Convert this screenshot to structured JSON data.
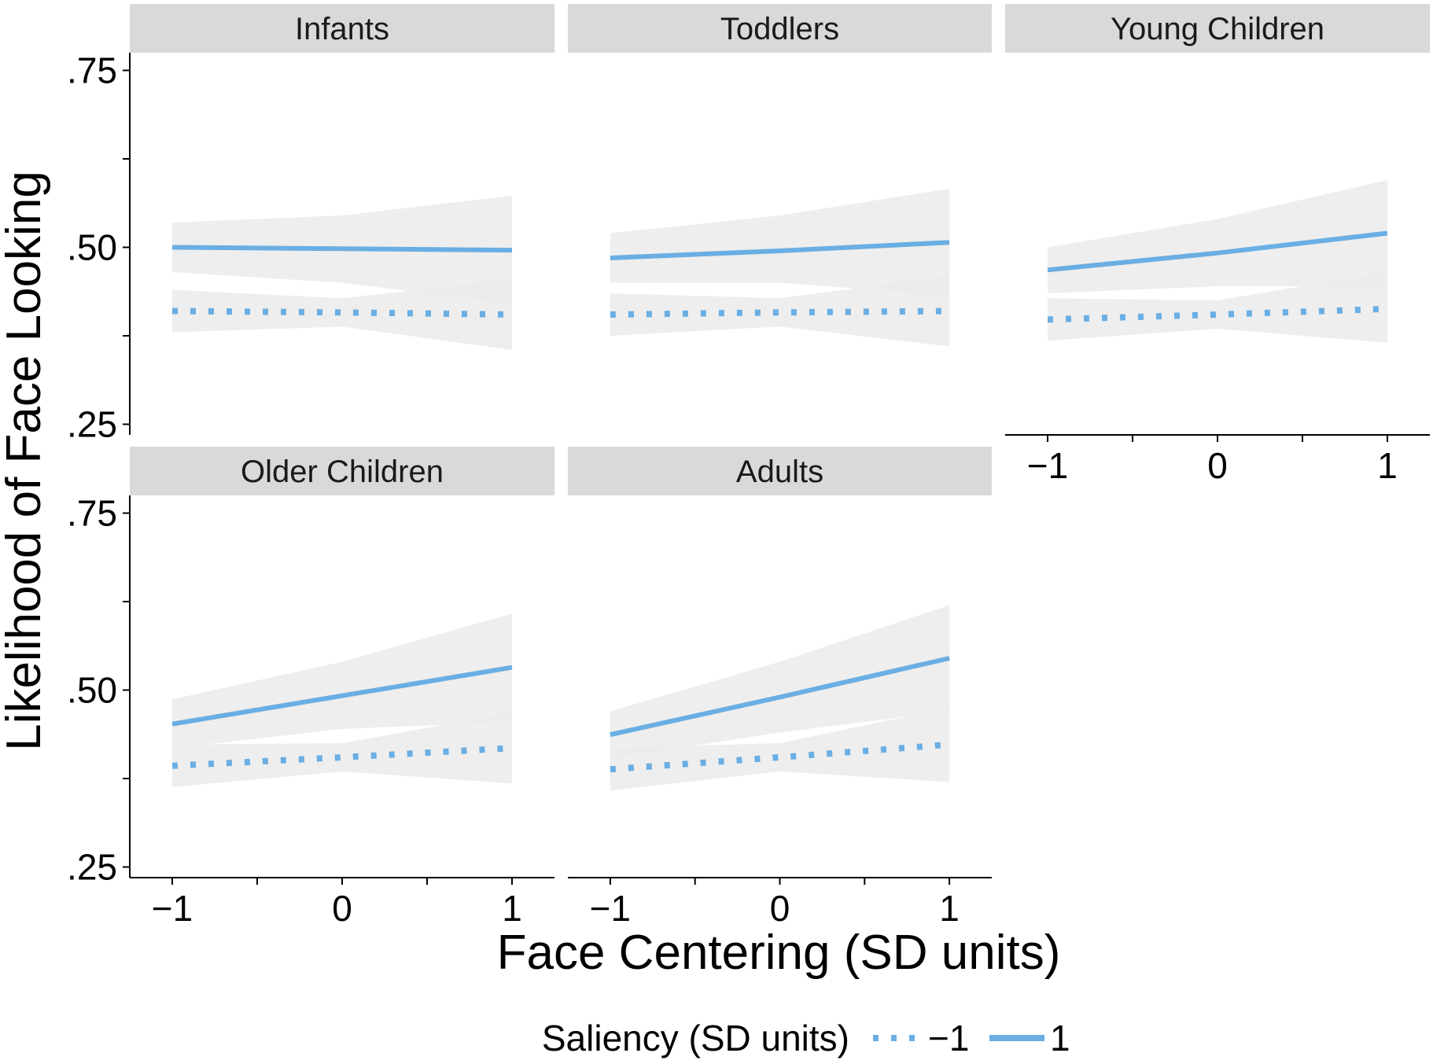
{
  "chart_data": {
    "type": "line",
    "title": "",
    "xlabel": "Face Centering (SD units)",
    "ylabel": "Likelihood of Face Looking",
    "x_ticks": [
      -1,
      0,
      1
    ],
    "x_tick_labels": [
      "−1",
      "0",
      "1"
    ],
    "xlim": [
      -1.25,
      1.25
    ],
    "y_ticks": [
      0.25,
      0.5,
      0.75
    ],
    "y_tick_labels": [
      ".25",
      ".50",
      ".75"
    ],
    "ylim": [
      0.235,
      0.775
    ],
    "grid": false,
    "legend": {
      "position": "bottom",
      "title": "Saliency (SD units)",
      "entries": [
        "−1",
        "1"
      ]
    },
    "colors": {
      "line": "#6aaee3",
      "band": "#ebebeb",
      "band_overlap": "#d6d6d6",
      "strip": "#d9d9d9"
    },
    "panels": [
      {
        "label": "Infants",
        "series": [
          {
            "saliency": "−1",
            "x": [
              -1,
              0,
              1
            ],
            "y": [
              0.41,
              0.408,
              0.405
            ],
            "lower": [
              0.38,
              0.388,
              0.355
            ],
            "upper": [
              0.44,
              0.428,
              0.455
            ]
          },
          {
            "saliency": "1",
            "x": [
              -1,
              0,
              1
            ],
            "y": [
              0.5,
              0.498,
              0.496
            ],
            "lower": [
              0.465,
              0.45,
              0.42
            ],
            "upper": [
              0.535,
              0.545,
              0.573
            ]
          }
        ]
      },
      {
        "label": "Toddlers",
        "series": [
          {
            "saliency": "−1",
            "x": [
              -1,
              0,
              1
            ],
            "y": [
              0.405,
              0.408,
              0.41
            ],
            "lower": [
              0.375,
              0.388,
              0.36
            ],
            "upper": [
              0.435,
              0.428,
              0.46
            ]
          },
          {
            "saliency": "1",
            "x": [
              -1,
              0,
              1
            ],
            "y": [
              0.485,
              0.495,
              0.507
            ],
            "lower": [
              0.45,
              0.45,
              0.432
            ],
            "upper": [
              0.52,
              0.545,
              0.583
            ]
          }
        ]
      },
      {
        "label": "Young Children",
        "series": [
          {
            "saliency": "−1",
            "x": [
              -1,
              0,
              1
            ],
            "y": [
              0.398,
              0.405,
              0.413
            ],
            "lower": [
              0.368,
              0.385,
              0.365
            ],
            "upper": [
              0.428,
              0.425,
              0.465
            ]
          },
          {
            "saliency": "1",
            "x": [
              -1,
              0,
              1
            ],
            "y": [
              0.468,
              0.492,
              0.52
            ],
            "lower": [
              0.435,
              0.445,
              0.445
            ],
            "upper": [
              0.5,
              0.54,
              0.595
            ]
          }
        ]
      },
      {
        "label": "Older Children",
        "series": [
          {
            "saliency": "−1",
            "x": [
              -1,
              0,
              1
            ],
            "y": [
              0.393,
              0.405,
              0.418
            ],
            "lower": [
              0.363,
              0.385,
              0.368
            ],
            "upper": [
              0.423,
              0.425,
              0.468
            ]
          },
          {
            "saliency": "1",
            "x": [
              -1,
              0,
              1
            ],
            "y": [
              0.452,
              0.492,
              0.532
            ],
            "lower": [
              0.418,
              0.445,
              0.455
            ],
            "upper": [
              0.487,
              0.54,
              0.608
            ]
          }
        ]
      },
      {
        "label": "Adults",
        "series": [
          {
            "saliency": "−1",
            "x": [
              -1,
              0,
              1
            ],
            "y": [
              0.388,
              0.405,
              0.423
            ],
            "lower": [
              0.358,
              0.385,
              0.37
            ],
            "upper": [
              0.418,
              0.425,
              0.475
            ]
          },
          {
            "saliency": "1",
            "x": [
              -1,
              0,
              1
            ],
            "y": [
              0.437,
              0.49,
              0.545
            ],
            "lower": [
              0.403,
              0.44,
              0.47
            ],
            "upper": [
              0.47,
              0.54,
              0.62
            ]
          }
        ]
      }
    ]
  }
}
